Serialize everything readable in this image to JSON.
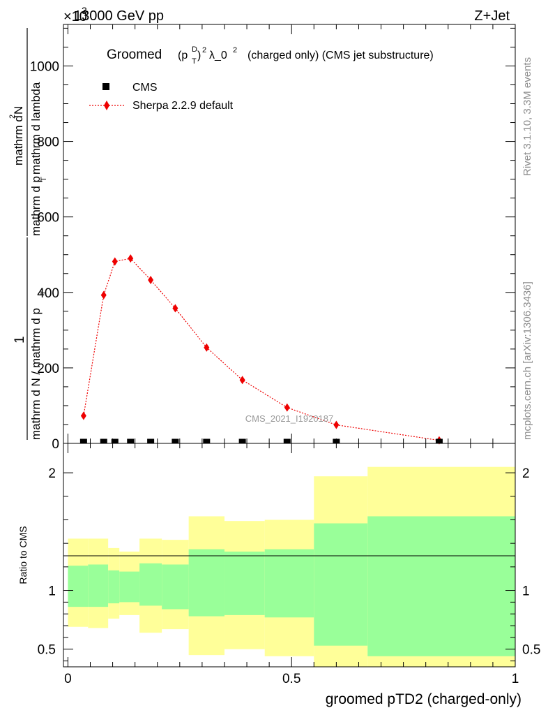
{
  "header": {
    "left": "13000 GeV pp",
    "right": "Z+Jet",
    "exponent_prefix": "×10",
    "exponent": "3"
  },
  "title": {
    "prefix": "Groomed",
    "sym_p": "(p",
    "sup_D": "D",
    "sub_T": "T",
    "close": ")",
    "sup_2": "2",
    "lambda": "λ_0",
    "sup_2b": "2",
    "suffix": "(charged only) (CMS jet substructure)"
  },
  "yaxis_label": {
    "num_1": "1",
    "den_1": "mathrm d N / mathrm d p",
    "den_1_sub": "T",
    "num_2": "mathrm d",
    "num_2_sup": "2",
    "num_2b": "N",
    "den_2": "mathrm d p",
    "den_2_sub": "T",
    "den_2b": "mathrm d lambda"
  },
  "side_labels": {
    "rivet": "Rivet 3.1.10,  3.3M events",
    "mcplots": "mcplots.cern.ch [arXiv:1306.3436]"
  },
  "watermark": "CMS_2021_I1920187",
  "legend": {
    "cms": "CMS",
    "sherpa": "Sherpa 2.2.9 default"
  },
  "ratio_ylabel": "Ratio to CMS",
  "xlabel": "groomed pTD2 (charged-only)",
  "colors": {
    "mc": "#ee0000",
    "band_inner": "#99ff99",
    "band_outer": "#ffff99",
    "data": "#000000"
  },
  "chart_data": {
    "type": "scatter",
    "x_range": [
      -0.01,
      1.0
    ],
    "main": {
      "y_range": [
        0,
        1110
      ],
      "y_scale_note": "×10^3",
      "yticks": [
        0,
        200,
        400,
        600,
        800,
        1000
      ],
      "ytick_labels": [
        "0",
        "200",
        "400",
        "600",
        "800",
        "1000"
      ],
      "series": [
        {
          "name": "CMS",
          "marker": "square",
          "x": [
            0.035,
            0.08,
            0.105,
            0.14,
            0.185,
            0.24,
            0.31,
            0.39,
            0.49,
            0.6,
            0.83
          ],
          "y": [
            1,
            1,
            1,
            1,
            1,
            1,
            1,
            1,
            1,
            1,
            1
          ]
        },
        {
          "name": "Sherpa 2.2.9 default",
          "marker": "diamond",
          "x": [
            0.035,
            0.08,
            0.105,
            0.14,
            0.185,
            0.24,
            0.31,
            0.39,
            0.49,
            0.6,
            0.83
          ],
          "y": [
            73,
            393,
            482,
            490,
            433,
            358,
            254,
            168,
            95,
            49,
            8
          ]
        }
      ]
    },
    "ratio": {
      "y_range": [
        0.35,
        2.25
      ],
      "yticks": [
        0.5,
        1,
        2
      ],
      "ytick_labels": [
        "0.5",
        "1",
        "2"
      ],
      "xticks": [
        0,
        0.5,
        1
      ],
      "xtick_labels": [
        "0",
        "0.5",
        "1"
      ],
      "bins": [
        {
          "x": [
            0.0,
            0.045
          ],
          "inner": [
            0.86,
            1.21
          ],
          "outer": [
            0.69,
            1.44
          ]
        },
        {
          "x": [
            0.045,
            0.09
          ],
          "inner": [
            0.86,
            1.22
          ],
          "outer": [
            0.68,
            1.44
          ]
        },
        {
          "x": [
            0.09,
            0.115
          ],
          "inner": [
            0.89,
            1.17
          ],
          "outer": [
            0.76,
            1.36
          ]
        },
        {
          "x": [
            0.115,
            0.16
          ],
          "inner": [
            0.9,
            1.16
          ],
          "outer": [
            0.79,
            1.33
          ]
        },
        {
          "x": [
            0.16,
            0.21
          ],
          "inner": [
            0.87,
            1.23
          ],
          "outer": [
            0.64,
            1.44
          ]
        },
        {
          "x": [
            0.21,
            0.27
          ],
          "inner": [
            0.84,
            1.22
          ],
          "outer": [
            0.67,
            1.43
          ]
        },
        {
          "x": [
            0.27,
            0.35
          ],
          "inner": [
            0.78,
            1.35
          ],
          "outer": [
            0.45,
            1.63
          ]
        },
        {
          "x": [
            0.35,
            0.44
          ],
          "inner": [
            0.79,
            1.33
          ],
          "outer": [
            0.5,
            1.59
          ]
        },
        {
          "x": [
            0.44,
            0.55
          ],
          "inner": [
            0.77,
            1.35
          ],
          "outer": [
            0.44,
            1.6
          ]
        },
        {
          "x": [
            0.55,
            0.67
          ],
          "inner": [
            0.53,
            1.57
          ],
          "outer": [
            0.35,
            1.97
          ]
        },
        {
          "x": [
            0.67,
            1.0
          ],
          "inner": [
            0.44,
            1.63
          ],
          "outer": [
            0.35,
            2.05
          ]
        }
      ]
    }
  }
}
